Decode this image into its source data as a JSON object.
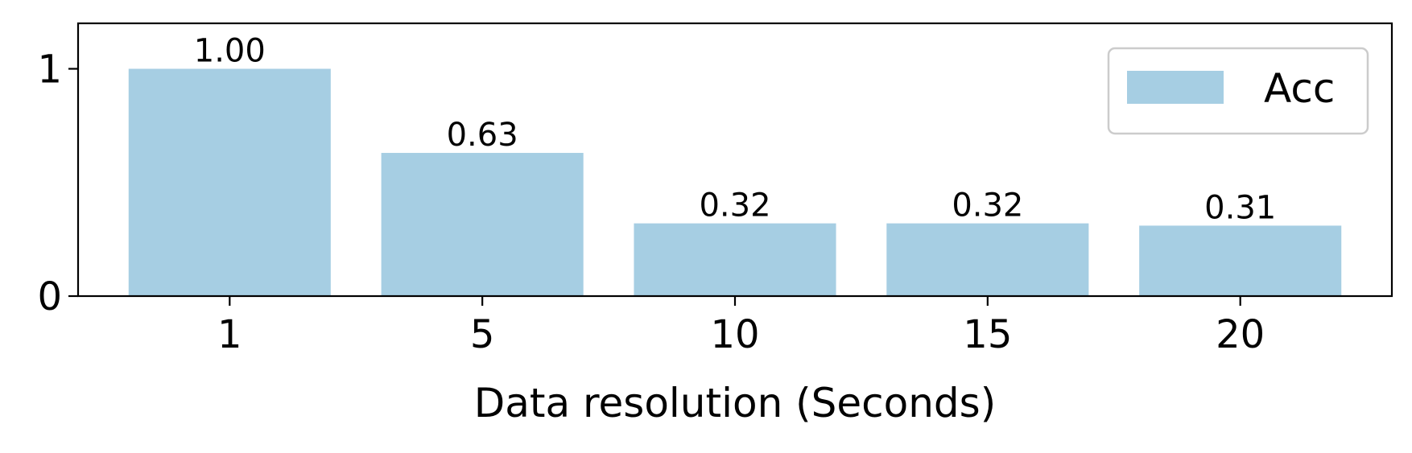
{
  "chart_data": {
    "type": "bar",
    "categories": [
      "1",
      "5",
      "10",
      "15",
      "20"
    ],
    "series": [
      {
        "name": "Acc",
        "values": [
          1.0,
          0.63,
          0.32,
          0.32,
          0.31
        ],
        "color": "#a6cee3"
      }
    ],
    "value_labels": [
      "1.00",
      "0.63",
      "0.32",
      "0.32",
      "0.31"
    ],
    "xlabel": "Data resolution (Seconds)",
    "ylabel": "",
    "ylim": [
      0,
      1.2
    ],
    "yticks": [
      0,
      1
    ],
    "ytick_labels": [
      "0",
      "1"
    ],
    "grid": false,
    "legend_position": "top-right"
  }
}
